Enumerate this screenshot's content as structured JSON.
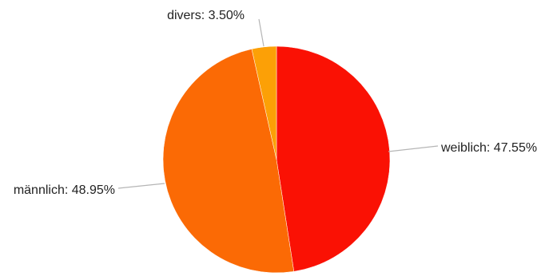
{
  "chart_data": {
    "type": "pie",
    "title": "",
    "legend": "none",
    "slices": [
      {
        "label": "weiblich",
        "value": 47.55,
        "display": "weiblich: 47.55%",
        "color": "#fa1104"
      },
      {
        "label": "männlich",
        "value": 48.95,
        "display": "männlich: 48.95%",
        "color": "#fb6a05"
      },
      {
        "label": "divers",
        "value": 3.5,
        "display": "divers: 3.50%",
        "color": "#fca006"
      }
    ]
  }
}
